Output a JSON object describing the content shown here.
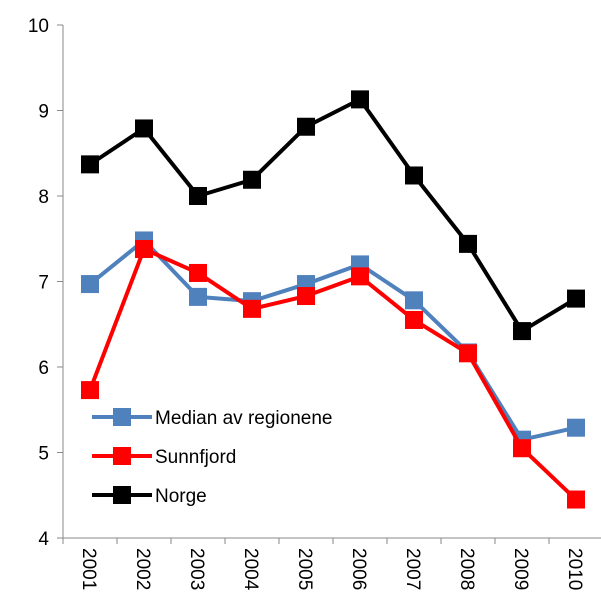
{
  "chart_data": {
    "type": "line",
    "categories": [
      "2001",
      "2002",
      "2003",
      "2004",
      "2005",
      "2006",
      "2007",
      "2008",
      "2009",
      "2010"
    ],
    "series": [
      {
        "name": "Median av regionene",
        "color": "#4f81bd",
        "values": [
          6.97,
          7.48,
          6.82,
          6.77,
          6.97,
          7.2,
          6.78,
          6.17,
          5.15,
          5.29
        ]
      },
      {
        "name": "Sunnfjord",
        "color": "#ff0000",
        "values": [
          5.73,
          7.38,
          7.1,
          6.68,
          6.83,
          7.06,
          6.55,
          6.16,
          5.05,
          4.45
        ]
      },
      {
        "name": "Norge",
        "color": "#000000",
        "values": [
          8.37,
          8.79,
          8.0,
          8.19,
          8.81,
          9.13,
          8.24,
          7.44,
          6.42,
          6.8
        ]
      }
    ],
    "ylim": [
      4,
      10
    ],
    "yticks": [
      4,
      5,
      6,
      7,
      8,
      9,
      10
    ],
    "legend": "lower left"
  }
}
